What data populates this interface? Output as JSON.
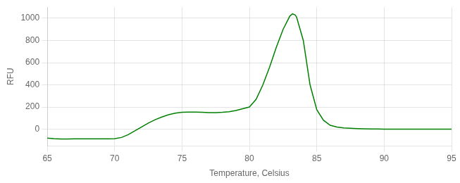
{
  "chart_data": {
    "type": "line",
    "xlabel": "Temperature, Celsius",
    "ylabel": "RFU",
    "x": [
      65.0,
      65.5,
      66.0,
      66.5,
      67.0,
      67.5,
      68.0,
      68.5,
      69.0,
      69.5,
      70.0,
      70.5,
      71.0,
      71.5,
      72.0,
      72.5,
      73.0,
      73.5,
      74.0,
      74.5,
      75.0,
      75.5,
      76.0,
      76.5,
      77.0,
      77.5,
      78.0,
      78.5,
      79.0,
      79.5,
      80.0,
      80.5,
      81.0,
      81.5,
      82.0,
      82.5,
      83.0,
      83.2,
      83.4,
      83.5,
      84.0,
      84.5,
      85.0,
      85.5,
      86.0,
      86.5,
      87.0,
      87.5,
      88.0,
      88.5,
      89.0,
      89.5,
      90.0,
      90.5,
      91.0,
      91.5,
      92.0,
      92.5,
      93.0,
      93.5,
      94.0,
      94.5,
      95.0
    ],
    "values": [
      -80,
      -85,
      -88,
      -88,
      -87,
      -87,
      -87,
      -87,
      -87,
      -87,
      -85,
      -75,
      -50,
      -15,
      20,
      55,
      85,
      110,
      130,
      145,
      152,
      155,
      155,
      153,
      150,
      150,
      152,
      158,
      168,
      185,
      200,
      270,
      400,
      560,
      740,
      900,
      1020,
      1040,
      1030,
      1010,
      800,
      400,
      175,
      80,
      35,
      20,
      12,
      8,
      5,
      3,
      2,
      2,
      1,
      1,
      1,
      0,
      0,
      0,
      0,
      0,
      0,
      0,
      0
    ],
    "color": "#008000",
    "xlim": [
      65,
      95
    ],
    "ylim": [
      -150,
      1100
    ],
    "xticks": [
      65,
      70,
      75,
      80,
      85,
      90,
      95
    ],
    "yticks": [
      0,
      200,
      400,
      600,
      800,
      1000
    ],
    "grid": true
  }
}
